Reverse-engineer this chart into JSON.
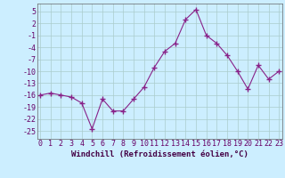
{
  "x": [
    0,
    1,
    2,
    3,
    4,
    5,
    6,
    7,
    8,
    9,
    10,
    11,
    12,
    13,
    14,
    15,
    16,
    17,
    18,
    19,
    20,
    21,
    22,
    23
  ],
  "y": [
    -16,
    -15.5,
    -16,
    -16.5,
    -18,
    -24.5,
    -17,
    -20,
    -20,
    -17,
    -14,
    -9,
    -5,
    -3,
    3,
    5.5,
    -1,
    -3,
    -6,
    -10,
    -14.5,
    -8.5,
    -12,
    -10
  ],
  "line_color": "#882288",
  "marker": "+",
  "marker_size": 4,
  "bg_color": "#cceeff",
  "grid_color": "#aacccc",
  "xlabel": "Windchill (Refroidissement éolien,°C)",
  "xlabel_fontsize": 6.5,
  "tick_fontsize": 6,
  "ylim": [
    -27,
    7
  ],
  "yticks": [
    5,
    2,
    -1,
    -4,
    -7,
    -10,
    -13,
    -16,
    -19,
    -22,
    -25
  ],
  "xticks": [
    0,
    1,
    2,
    3,
    4,
    5,
    6,
    7,
    8,
    9,
    10,
    11,
    12,
    13,
    14,
    15,
    16,
    17,
    18,
    19,
    20,
    21,
    22,
    23
  ]
}
